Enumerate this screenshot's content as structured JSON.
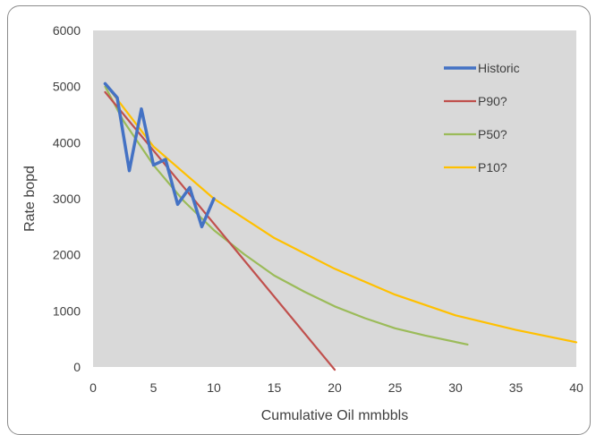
{
  "chart_data": {
    "type": "line",
    "title": "",
    "xlabel": "Cumulative Oil mmbbls",
    "ylabel": "Rate  bopd",
    "xlim": [
      0,
      40
    ],
    "ylim": [
      0,
      6000
    ],
    "x_ticks": [
      "0",
      "5",
      "10",
      "15",
      "20",
      "25",
      "30",
      "35",
      "40"
    ],
    "y_ticks": [
      "0",
      "1000",
      "2000",
      "3000",
      "4000",
      "5000",
      "6000"
    ],
    "grid": false,
    "plot_background": "#d9d9d9",
    "legend_position": "right-inside",
    "series": [
      {
        "name": "Historic",
        "color": "#4472c4",
        "x": [
          1,
          2,
          3,
          4,
          5,
          6,
          7,
          8,
          9,
          10
        ],
        "y": [
          5050,
          4800,
          3500,
          4600,
          3600,
          3700,
          2900,
          3200,
          2500,
          3000
        ]
      },
      {
        "name": "P90?",
        "color": "#c0504d",
        "x": [
          1,
          20
        ],
        "y": [
          4900,
          -50
        ]
      },
      {
        "name": "P50?",
        "color": "#9bbb59",
        "x": [
          1,
          2.5,
          5,
          7.5,
          10,
          12.5,
          15,
          17.5,
          20,
          22.5,
          25,
          27.5,
          31
        ],
        "y": [
          5000,
          4390,
          3600,
          2960,
          2440,
          2010,
          1630,
          1340,
          1080,
          870,
          690,
          560,
          400
        ]
      },
      {
        "name": "P10?",
        "color": "#ffc000",
        "x": [
          1,
          5,
          10,
          15,
          20,
          25,
          30,
          35,
          40
        ],
        "y": [
          5050,
          3930,
          3000,
          2300,
          1750,
          1290,
          920,
          660,
          440
        ]
      }
    ]
  }
}
